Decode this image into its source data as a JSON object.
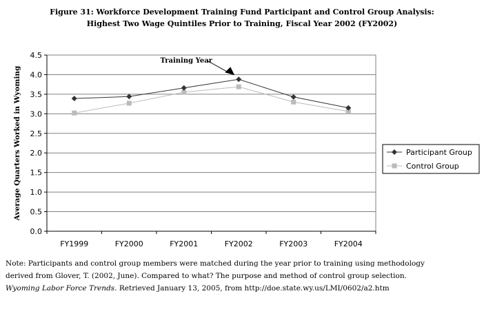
{
  "chart_data": {
    "type": "line",
    "title": "Figure 31: Workforce Development Training Fund Participant and Control Group Analysis:",
    "subtitle": "Highest Two Wage Quintiles Prior to Training, Fiscal Year 2002 (FY2002)",
    "xlabel": "",
    "ylabel": "Average Quarters Worked in Wyoming",
    "ylim": [
      0,
      4.5
    ],
    "yticks": [
      "0.0",
      "0.5",
      "1.0",
      "1.5",
      "2.0",
      "2.5",
      "3.0",
      "3.5",
      "4.0",
      "4.5"
    ],
    "grid": true,
    "legend": "right",
    "categories": [
      "FY1999",
      "FY2000",
      "FY2001",
      "FY2002",
      "FY2003",
      "FY2004"
    ],
    "series": [
      {
        "name": "Participant Group",
        "values": [
          3.39,
          3.44,
          3.66,
          3.88,
          3.43,
          3.15
        ],
        "color": "#333333",
        "marker": "diamond"
      },
      {
        "name": "Control Group",
        "values": [
          3.02,
          3.27,
          3.55,
          3.69,
          3.3,
          3.06
        ],
        "color": "#bbbbbb",
        "marker": "square"
      }
    ],
    "annotation": {
      "text": "Training Year",
      "category": "FY2002"
    }
  },
  "note": {
    "line1": "Note: Participants and control group members were matched during the year prior to training using methodology",
    "line2": "derived from Glover, T. (2002, June). Compared to what? The purpose and method of control group selection.",
    "line3_italic": "Wyoming Labor Force Trends",
    "line3_rest": ". Retrieved January 13, 2005, from http://doe.state.wy.us/LMI/0602/a2.htm"
  }
}
